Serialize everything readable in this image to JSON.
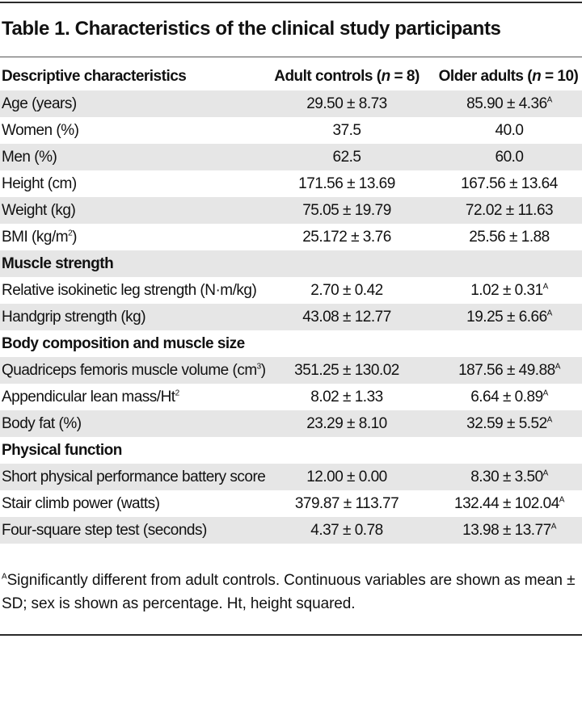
{
  "title": "Table 1. Characteristics of the clinical study participants",
  "header": {
    "label": "Descriptive characteristics",
    "col_a_prefix": "Adult controls (",
    "col_a_n": "n",
    "col_a_suffix": " = 8)",
    "col_b_prefix": "Older adults (",
    "col_b_n": "n",
    "col_b_suffix": " = 10)"
  },
  "sig_mark": "A",
  "rows": [
    {
      "label": "Age (years)",
      "a": "29.50 ± 8.73",
      "b": "85.90 ± 4.36",
      "b_sig": "A"
    },
    {
      "label": "Women (%)",
      "a": "37.5",
      "b": "40.0"
    },
    {
      "label": "Men (%)",
      "a": "62.5",
      "b": "60.0"
    },
    {
      "label": "Height (cm)",
      "a": "171.56 ± 13.69",
      "b": "167.56 ± 13.64"
    },
    {
      "label": "Weight (kg)",
      "a": "75.05 ± 19.79",
      "b": "72.02 ± 11.63"
    },
    {
      "label": "BMI (kg/m",
      "label_sup": "2",
      "label_after": ")",
      "a": "25.172 ± 3.76",
      "b": "25.56 ± 1.88"
    },
    {
      "section": "Muscle strength"
    },
    {
      "label": "Relative isokinetic leg strength (N·m/kg)",
      "a": "2.70 ± 0.42",
      "b": "1.02 ± 0.31",
      "b_sig": "A"
    },
    {
      "label": "Handgrip strength (kg)",
      "a": "43.08 ± 12.77",
      "b": "19.25 ± 6.66",
      "b_sig": "A"
    },
    {
      "section": "Body composition and muscle size"
    },
    {
      "label": "Quadriceps femoris muscle volume (cm",
      "label_sup": "3",
      "label_after": ")",
      "a": "351.25 ± 130.02",
      "b": "187.56 ± 49.88",
      "b_sig": "A"
    },
    {
      "label": "Appendicular lean mass/Ht",
      "label_sup": "2",
      "label_after": "",
      "a": "8.02 ± 1.33",
      "b": "6.64 ± 0.89",
      "b_sig": "A"
    },
    {
      "label": "Body fat (%)",
      "a": "23.29 ± 8.10",
      "b": "32.59 ± 5.52",
      "b_sig": "A"
    },
    {
      "section": "Physical function"
    },
    {
      "label": "Short physical performance battery score",
      "a": "12.00 ± 0.00",
      "b": "8.30 ± 3.50",
      "b_sig": "A"
    },
    {
      "label": "Stair climb power (watts)",
      "a": "379.87 ± 113.77",
      "b": "132.44 ± 102.04",
      "b_sig": "A"
    },
    {
      "label": "Four-square step test (seconds)",
      "a": "4.37 ± 0.78",
      "b": "13.98 ± 13.77",
      "b_sig": "A"
    }
  ],
  "footnote": {
    "mark": "A",
    "text": "Significantly different from adult controls. Continuous variables are shown as mean ± SD; sex is shown as percentage. Ht, height squared."
  }
}
